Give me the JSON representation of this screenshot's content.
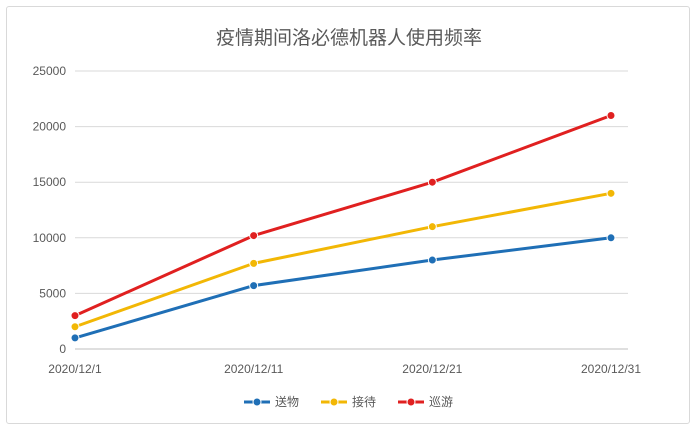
{
  "chart_data": {
    "type": "line",
    "title": "疫情期间洛必德机器人使用频率",
    "xlabel": "",
    "ylabel": "",
    "x": [
      "2020/12/1",
      "2020/12/11",
      "2020/12/21",
      "2020/12/31"
    ],
    "ylim": [
      0,
      25000
    ],
    "yticks": [
      0,
      5000,
      10000,
      15000,
      20000,
      25000
    ],
    "grid": true,
    "legend": "bottom",
    "series": [
      {
        "name": "送物",
        "color": "#1f6fb6",
        "values": [
          1000,
          5700,
          8000,
          10000
        ]
      },
      {
        "name": "接待",
        "color": "#f2b705",
        "values": [
          2000,
          7700,
          11000,
          14000
        ]
      },
      {
        "name": "巡游",
        "color": "#e02020",
        "values": [
          3000,
          10200,
          15000,
          21000
        ]
      }
    ]
  }
}
